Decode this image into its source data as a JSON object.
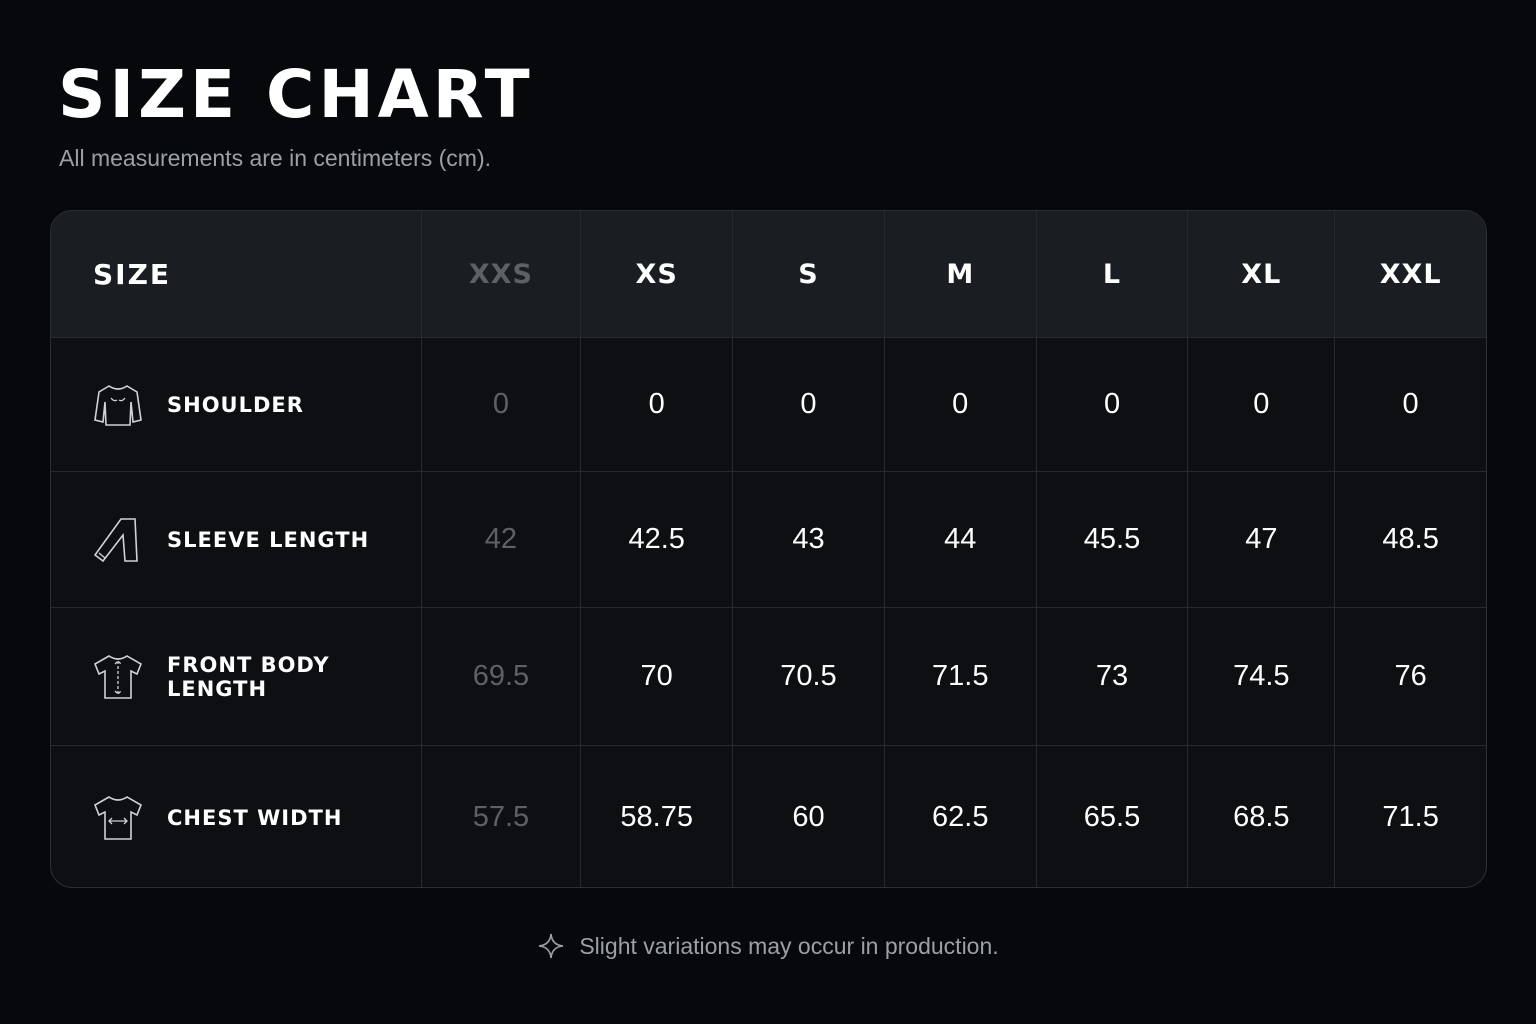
{
  "header": {
    "title": "SIZE CHART",
    "subtitle": "All measurements are in centimeters (cm)."
  },
  "table": {
    "corner": "SIZE",
    "columns": [
      "XXS",
      "XS",
      "S",
      "M",
      "L",
      "XL",
      "XXL"
    ],
    "rows": [
      {
        "label": "SHOULDER",
        "cells": [
          "0",
          "0",
          "0",
          "0",
          "0",
          "0",
          "0"
        ]
      },
      {
        "label": "SLEEVE LENGTH",
        "cells": [
          "42",
          "42.5",
          "43",
          "44",
          "45.5",
          "47",
          "48.5"
        ]
      },
      {
        "label": "FRONT BODY LENGTH",
        "cells": [
          "69.5",
          "70",
          "70.5",
          "71.5",
          "73",
          "74.5",
          "76"
        ]
      },
      {
        "label": "CHEST WIDTH",
        "cells": [
          "57.5",
          "58.75",
          "60",
          "62.5",
          "65.5",
          "68.5",
          "71.5"
        ]
      }
    ]
  },
  "footer": {
    "note": "Slight variations may occur in production."
  }
}
